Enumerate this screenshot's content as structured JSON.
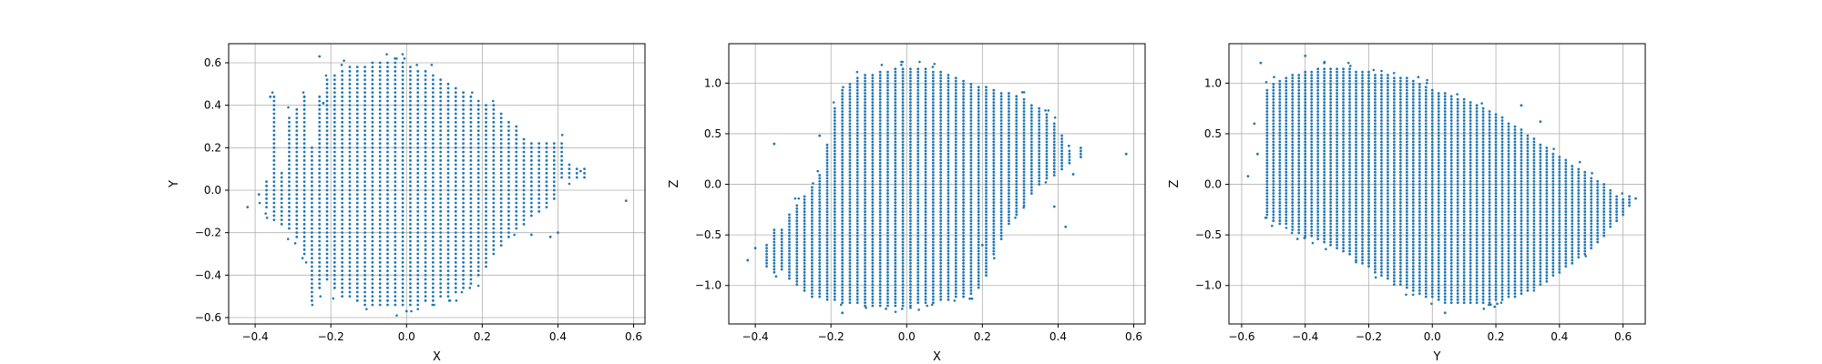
{
  "chart_data": [
    {
      "type": "scatter",
      "xlabel": "X",
      "ylabel": "Y",
      "xlim": [
        -0.47,
        0.63
      ],
      "ylim": [
        -0.63,
        0.69
      ],
      "xticks": [
        -0.4,
        -0.2,
        0.0,
        0.2,
        0.4,
        0.6
      ],
      "yticks": [
        -0.6,
        -0.4,
        -0.2,
        0.0,
        0.2,
        0.4,
        0.6
      ],
      "xtick_labels": [
        "−0.4",
        "−0.2",
        "0.0",
        "0.2",
        "0.4",
        "0.6"
      ],
      "ytick_labels": [
        "−0.6",
        "−0.4",
        "−0.2",
        "0.0",
        "0.2",
        "0.4",
        "0.6"
      ],
      "grid": true,
      "color": "#1f77b4",
      "grid_color": "#b0b0b0",
      "point_cloud": {
        "columns": [
          {
            "x": -0.42,
            "min": -0.07,
            "max": -0.07
          },
          {
            "x": -0.39,
            "min": -0.02,
            "max": -0.02
          },
          {
            "x": -0.37,
            "min": -0.09,
            "max": 0.05
          },
          {
            "x": -0.35,
            "min": -0.14,
            "max": 0.44
          },
          {
            "x": -0.33,
            "min": -0.16,
            "max": 0.08
          },
          {
            "x": -0.31,
            "min": -0.19,
            "max": 0.35
          },
          {
            "x": -0.29,
            "min": -0.23,
            "max": 0.38
          },
          {
            "x": -0.27,
            "min": -0.3,
            "max": 0.44
          },
          {
            "x": -0.25,
            "min": -0.52,
            "max": 0.2
          },
          {
            "x": -0.23,
            "min": -0.46,
            "max": 0.44
          },
          {
            "x": -0.21,
            "min": -0.43,
            "max": 0.52
          },
          {
            "x": -0.19,
            "min": -0.47,
            "max": 0.55
          },
          {
            "x": -0.17,
            "min": -0.51,
            "max": 0.57
          },
          {
            "x": -0.15,
            "min": -0.51,
            "max": 0.58
          },
          {
            "x": -0.13,
            "min": -0.53,
            "max": 0.59
          },
          {
            "x": -0.11,
            "min": -0.54,
            "max": 0.59
          },
          {
            "x": -0.09,
            "min": -0.54,
            "max": 0.6
          },
          {
            "x": -0.07,
            "min": -0.55,
            "max": 0.6
          },
          {
            "x": -0.05,
            "min": -0.55,
            "max": 0.6
          },
          {
            "x": -0.03,
            "min": -0.55,
            "max": 0.6
          },
          {
            "x": -0.01,
            "min": -0.55,
            "max": 0.6
          },
          {
            "x": 0.01,
            "min": -0.55,
            "max": 0.58
          },
          {
            "x": 0.03,
            "min": -0.54,
            "max": 0.57
          },
          {
            "x": 0.05,
            "min": -0.53,
            "max": 0.56
          },
          {
            "x": 0.07,
            "min": -0.52,
            "max": 0.55
          },
          {
            "x": 0.09,
            "min": -0.51,
            "max": 0.53
          },
          {
            "x": 0.11,
            "min": -0.5,
            "max": 0.5
          },
          {
            "x": 0.13,
            "min": -0.48,
            "max": 0.48
          },
          {
            "x": 0.15,
            "min": -0.46,
            "max": 0.46
          },
          {
            "x": 0.17,
            "min": -0.44,
            "max": 0.44
          },
          {
            "x": 0.19,
            "min": -0.41,
            "max": 0.42
          },
          {
            "x": 0.21,
            "min": -0.36,
            "max": 0.41
          },
          {
            "x": 0.23,
            "min": -0.3,
            "max": 0.4
          },
          {
            "x": 0.25,
            "min": -0.27,
            "max": 0.36
          },
          {
            "x": 0.27,
            "min": -0.22,
            "max": 0.33
          },
          {
            "x": 0.29,
            "min": -0.19,
            "max": 0.3
          },
          {
            "x": 0.31,
            "min": -0.16,
            "max": 0.25
          },
          {
            "x": 0.33,
            "min": -0.13,
            "max": 0.22
          },
          {
            "x": 0.35,
            "min": -0.11,
            "max": 0.22
          },
          {
            "x": 0.37,
            "min": -0.08,
            "max": 0.22
          },
          {
            "x": 0.39,
            "min": -0.05,
            "max": 0.22
          },
          {
            "x": 0.41,
            "min": 0.05,
            "max": 0.22
          },
          {
            "x": 0.43,
            "min": 0.05,
            "max": 0.12
          },
          {
            "x": 0.45,
            "min": 0.05,
            "max": 0.1
          },
          {
            "x": 0.47,
            "min": 0.05,
            "max": 0.1
          }
        ],
        "outliers": [
          [
            0.58,
            -0.05
          ],
          [
            -0.27,
            0.44
          ],
          [
            -0.23,
            0.63
          ],
          [
            -0.36,
            0.44
          ],
          [
            0.4,
            -0.2
          ],
          [
            0.33,
            -0.21
          ],
          [
            0.0,
            -0.57
          ],
          [
            0.46,
            0.09
          ],
          [
            -0.22,
            0.41
          ],
          [
            0.38,
            -0.22
          ]
        ],
        "y_step": 0.02
      }
    },
    {
      "type": "scatter",
      "xlabel": "X",
      "ylabel": "Z",
      "xlim": [
        -0.47,
        0.63
      ],
      "ylim": [
        -1.38,
        1.39
      ],
      "xticks": [
        -0.4,
        -0.2,
        0.0,
        0.2,
        0.4,
        0.6
      ],
      "yticks": [
        -1.0,
        -0.5,
        0.0,
        0.5,
        1.0
      ],
      "xtick_labels": [
        "−0.4",
        "−0.2",
        "0.0",
        "0.2",
        "0.4",
        "0.6"
      ],
      "ytick_labels": [
        "−1.0",
        "−0.5",
        "0.0",
        "0.5",
        "1.0"
      ],
      "grid": true,
      "color": "#1f77b4",
      "grid_color": "#b0b0b0",
      "point_cloud": {
        "columns": [
          {
            "x": -0.4,
            "min": -0.63,
            "max": -0.63
          },
          {
            "x": -0.37,
            "min": -0.8,
            "max": -0.6
          },
          {
            "x": -0.35,
            "min": -0.88,
            "max": -0.45
          },
          {
            "x": -0.33,
            "min": -0.85,
            "max": -0.45
          },
          {
            "x": -0.31,
            "min": -0.92,
            "max": -0.3
          },
          {
            "x": -0.29,
            "min": -0.98,
            "max": -0.2
          },
          {
            "x": -0.27,
            "min": -1.05,
            "max": -0.12
          },
          {
            "x": -0.25,
            "min": -1.1,
            "max": -0.02
          },
          {
            "x": -0.23,
            "min": -1.12,
            "max": 0.1
          },
          {
            "x": -0.21,
            "min": -1.14,
            "max": 0.4
          },
          {
            "x": -0.19,
            "min": -1.15,
            "max": 0.75
          },
          {
            "x": -0.17,
            "min": -1.16,
            "max": 0.93
          },
          {
            "x": -0.15,
            "min": -1.17,
            "max": 1.0
          },
          {
            "x": -0.13,
            "min": -1.18,
            "max": 1.05
          },
          {
            "x": -0.11,
            "min": -1.19,
            "max": 1.08
          },
          {
            "x": -0.09,
            "min": -1.2,
            "max": 1.1
          },
          {
            "x": -0.07,
            "min": -1.2,
            "max": 1.12
          },
          {
            "x": -0.05,
            "min": -1.2,
            "max": 1.13
          },
          {
            "x": -0.03,
            "min": -1.2,
            "max": 1.14
          },
          {
            "x": -0.01,
            "min": -1.2,
            "max": 1.15
          },
          {
            "x": 0.01,
            "min": -1.19,
            "max": 1.15
          },
          {
            "x": 0.03,
            "min": -1.18,
            "max": 1.15
          },
          {
            "x": 0.05,
            "min": -1.17,
            "max": 1.14
          },
          {
            "x": 0.07,
            "min": -1.16,
            "max": 1.13
          },
          {
            "x": 0.09,
            "min": -1.15,
            "max": 1.12
          },
          {
            "x": 0.11,
            "min": -1.14,
            "max": 1.1
          },
          {
            "x": 0.13,
            "min": -1.12,
            "max": 1.07
          },
          {
            "x": 0.15,
            "min": -1.1,
            "max": 1.04
          },
          {
            "x": 0.17,
            "min": -1.07,
            "max": 1.0
          },
          {
            "x": 0.19,
            "min": -1.03,
            "max": 0.98
          },
          {
            "x": 0.21,
            "min": -0.9,
            "max": 0.96
          },
          {
            "x": 0.23,
            "min": -0.7,
            "max": 0.95
          },
          {
            "x": 0.25,
            "min": -0.55,
            "max": 0.92
          },
          {
            "x": 0.27,
            "min": -0.38,
            "max": 0.9
          },
          {
            "x": 0.29,
            "min": -0.3,
            "max": 0.88
          },
          {
            "x": 0.31,
            "min": -0.2,
            "max": 0.85
          },
          {
            "x": 0.33,
            "min": -0.1,
            "max": 0.8
          },
          {
            "x": 0.35,
            "min": 0.0,
            "max": 0.75
          },
          {
            "x": 0.37,
            "min": 0.05,
            "max": 0.7
          },
          {
            "x": 0.39,
            "min": 0.1,
            "max": 0.6
          },
          {
            "x": 0.41,
            "min": 0.15,
            "max": 0.5
          },
          {
            "x": 0.43,
            "min": 0.2,
            "max": 0.35
          },
          {
            "x": 0.46,
            "min": 0.27,
            "max": 0.37
          }
        ],
        "outliers": [
          [
            0.58,
            0.3
          ],
          [
            -0.23,
            0.48
          ],
          [
            -0.35,
            0.4
          ],
          [
            -0.42,
            -0.75
          ],
          [
            0.42,
            -0.42
          ],
          [
            0.39,
            -0.22
          ],
          [
            0.44,
            0.1
          ],
          [
            -0.17,
            -1.27
          ],
          [
            0.17,
            -0.45
          ],
          [
            0.2,
            -0.6
          ]
        ],
        "y_step": 0.03
      }
    },
    {
      "type": "scatter",
      "xlabel": "Y",
      "ylabel": "Z",
      "xlim": [
        -0.64,
        0.67
      ],
      "ylim": [
        -1.38,
        1.39
      ],
      "xticks": [
        -0.6,
        -0.4,
        -0.2,
        0.0,
        0.2,
        0.4,
        0.6
      ],
      "yticks": [
        -1.0,
        -0.5,
        0.0,
        0.5,
        1.0
      ],
      "xtick_labels": [
        "−0.6",
        "−0.4",
        "−0.2",
        "0.0",
        "0.2",
        "0.4",
        "0.6"
      ],
      "ytick_labels": [
        "−1.0",
        "−0.5",
        "0.0",
        "0.5",
        "1.0"
      ],
      "grid": true,
      "color": "#1f77b4",
      "grid_color": "#b0b0b0",
      "point_cloud": {
        "columns": [
          {
            "x": -0.52,
            "min": -0.3,
            "max": 0.95
          },
          {
            "x": -0.5,
            "min": -0.35,
            "max": 1.0
          },
          {
            "x": -0.48,
            "min": -0.38,
            "max": 1.03
          },
          {
            "x": -0.46,
            "min": -0.4,
            "max": 1.05
          },
          {
            "x": -0.44,
            "min": -0.45,
            "max": 1.08
          },
          {
            "x": -0.42,
            "min": -0.48,
            "max": 1.1
          },
          {
            "x": -0.4,
            "min": -0.5,
            "max": 1.12
          },
          {
            "x": -0.38,
            "min": -0.52,
            "max": 1.13
          },
          {
            "x": -0.36,
            "min": -0.55,
            "max": 1.14
          },
          {
            "x": -0.34,
            "min": -0.58,
            "max": 1.15
          },
          {
            "x": -0.32,
            "min": -0.6,
            "max": 1.15
          },
          {
            "x": -0.3,
            "min": -0.62,
            "max": 1.15
          },
          {
            "x": -0.28,
            "min": -0.66,
            "max": 1.15
          },
          {
            "x": -0.26,
            "min": -0.7,
            "max": 1.14
          },
          {
            "x": -0.24,
            "min": -0.74,
            "max": 1.13
          },
          {
            "x": -0.22,
            "min": -0.78,
            "max": 1.12
          },
          {
            "x": -0.2,
            "min": -0.82,
            "max": 1.11
          },
          {
            "x": -0.18,
            "min": -0.86,
            "max": 1.1
          },
          {
            "x": -0.16,
            "min": -0.9,
            "max": 1.09
          },
          {
            "x": -0.14,
            "min": -0.94,
            "max": 1.08
          },
          {
            "x": -0.12,
            "min": -0.98,
            "max": 1.07
          },
          {
            "x": -0.1,
            "min": -1.0,
            "max": 1.06
          },
          {
            "x": -0.08,
            "min": -1.03,
            "max": 1.05
          },
          {
            "x": -0.06,
            "min": -1.06,
            "max": 1.03
          },
          {
            "x": -0.04,
            "min": -1.08,
            "max": 1.0
          },
          {
            "x": -0.02,
            "min": -1.1,
            "max": 0.97
          },
          {
            "x": 0.0,
            "min": -1.12,
            "max": 0.94
          },
          {
            "x": 0.02,
            "min": -1.14,
            "max": 0.92
          },
          {
            "x": 0.04,
            "min": -1.16,
            "max": 0.9
          },
          {
            "x": 0.06,
            "min": -1.17,
            "max": 0.88
          },
          {
            "x": 0.08,
            "min": -1.18,
            "max": 0.86
          },
          {
            "x": 0.1,
            "min": -1.18,
            "max": 0.84
          },
          {
            "x": 0.12,
            "min": -1.18,
            "max": 0.82
          },
          {
            "x": 0.14,
            "min": -1.18,
            "max": 0.8
          },
          {
            "x": 0.16,
            "min": -1.17,
            "max": 0.77
          },
          {
            "x": 0.18,
            "min": -1.16,
            "max": 0.74
          },
          {
            "x": 0.2,
            "min": -1.15,
            "max": 0.7
          },
          {
            "x": 0.22,
            "min": -1.14,
            "max": 0.66
          },
          {
            "x": 0.24,
            "min": -1.12,
            "max": 0.62
          },
          {
            "x": 0.26,
            "min": -1.1,
            "max": 0.58
          },
          {
            "x": 0.28,
            "min": -1.08,
            "max": 0.54
          },
          {
            "x": 0.3,
            "min": -1.05,
            "max": 0.5
          },
          {
            "x": 0.32,
            "min": -1.02,
            "max": 0.45
          },
          {
            "x": 0.34,
            "min": -0.98,
            "max": 0.4
          },
          {
            "x": 0.36,
            "min": -0.95,
            "max": 0.36
          },
          {
            "x": 0.38,
            "min": -0.9,
            "max": 0.32
          },
          {
            "x": 0.4,
            "min": -0.86,
            "max": 0.28
          },
          {
            "x": 0.42,
            "min": -0.82,
            "max": 0.24
          },
          {
            "x": 0.44,
            "min": -0.78,
            "max": 0.2
          },
          {
            "x": 0.46,
            "min": -0.73,
            "max": 0.16
          },
          {
            "x": 0.48,
            "min": -0.68,
            "max": 0.12
          },
          {
            "x": 0.5,
            "min": -0.62,
            "max": 0.08
          },
          {
            "x": 0.52,
            "min": -0.56,
            "max": 0.04
          },
          {
            "x": 0.54,
            "min": -0.5,
            "max": 0.0
          },
          {
            "x": 0.56,
            "min": -0.42,
            "max": -0.05
          },
          {
            "x": 0.58,
            "min": -0.36,
            "max": -0.1
          },
          {
            "x": 0.6,
            "min": -0.3,
            "max": -0.15
          },
          {
            "x": 0.62,
            "min": -0.2,
            "max": -0.12
          }
        ],
        "outliers": [
          [
            -0.58,
            0.08
          ],
          [
            -0.54,
            1.2
          ],
          [
            -0.4,
            1.27
          ],
          [
            -0.34,
            1.2
          ],
          [
            0.04,
            -1.27
          ],
          [
            0.34,
            0.62
          ],
          [
            0.28,
            0.78
          ],
          [
            -0.56,
            0.6
          ],
          [
            0.64,
            -0.14
          ],
          [
            -0.55,
            0.3
          ]
        ],
        "y_step": 0.03
      }
    }
  ]
}
